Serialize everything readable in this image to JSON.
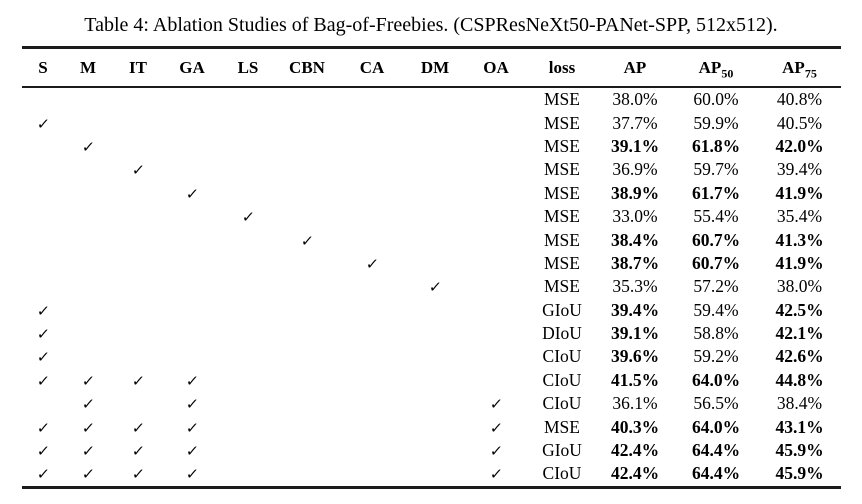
{
  "title": "Table 4: Ablation Studies of Bag-of-Freebies. (CSPResNeXt50-PANet-SPP, 512x512).",
  "table": {
    "check_glyph": "✓",
    "header": {
      "toggles": [
        "S",
        "M",
        "IT",
        "GA",
        "LS",
        "CBN",
        "CA",
        "DM",
        "OA"
      ],
      "loss": "loss",
      "metrics": [
        {
          "base": "AP",
          "sub": ""
        },
        {
          "base": "AP",
          "sub": "50"
        },
        {
          "base": "AP",
          "sub": "75"
        }
      ]
    },
    "rows": [
      {
        "checks": [],
        "loss": "MSE",
        "metrics": [
          {
            "v": "38.0%",
            "bold": false
          },
          {
            "v": "60.0%",
            "bold": false
          },
          {
            "v": "40.8%",
            "bold": false
          }
        ]
      },
      {
        "checks": [
          "S"
        ],
        "loss": "MSE",
        "metrics": [
          {
            "v": "37.7%",
            "bold": false
          },
          {
            "v": "59.9%",
            "bold": false
          },
          {
            "v": "40.5%",
            "bold": false
          }
        ]
      },
      {
        "checks": [
          "M"
        ],
        "loss": "MSE",
        "metrics": [
          {
            "v": "39.1%",
            "bold": true
          },
          {
            "v": "61.8%",
            "bold": true
          },
          {
            "v": "42.0%",
            "bold": true
          }
        ]
      },
      {
        "checks": [
          "IT"
        ],
        "loss": "MSE",
        "metrics": [
          {
            "v": "36.9%",
            "bold": false
          },
          {
            "v": "59.7%",
            "bold": false
          },
          {
            "v": "39.4%",
            "bold": false
          }
        ]
      },
      {
        "checks": [
          "GA"
        ],
        "loss": "MSE",
        "metrics": [
          {
            "v": "38.9%",
            "bold": true
          },
          {
            "v": "61.7%",
            "bold": true
          },
          {
            "v": "41.9%",
            "bold": true
          }
        ]
      },
      {
        "checks": [
          "LS"
        ],
        "loss": "MSE",
        "metrics": [
          {
            "v": "33.0%",
            "bold": false
          },
          {
            "v": "55.4%",
            "bold": false
          },
          {
            "v": "35.4%",
            "bold": false
          }
        ]
      },
      {
        "checks": [
          "CBN"
        ],
        "loss": "MSE",
        "metrics": [
          {
            "v": "38.4%",
            "bold": true
          },
          {
            "v": "60.7%",
            "bold": true
          },
          {
            "v": "41.3%",
            "bold": true
          }
        ]
      },
      {
        "checks": [
          "CA"
        ],
        "loss": "MSE",
        "metrics": [
          {
            "v": "38.7%",
            "bold": true
          },
          {
            "v": "60.7%",
            "bold": true
          },
          {
            "v": "41.9%",
            "bold": true
          }
        ]
      },
      {
        "checks": [
          "DM"
        ],
        "loss": "MSE",
        "metrics": [
          {
            "v": "35.3%",
            "bold": false
          },
          {
            "v": "57.2%",
            "bold": false
          },
          {
            "v": "38.0%",
            "bold": false
          }
        ]
      },
      {
        "checks": [
          "S"
        ],
        "loss": "GIoU",
        "metrics": [
          {
            "v": "39.4%",
            "bold": true
          },
          {
            "v": "59.4%",
            "bold": false
          },
          {
            "v": "42.5%",
            "bold": true
          }
        ]
      },
      {
        "checks": [
          "S"
        ],
        "loss": "DIoU",
        "metrics": [
          {
            "v": "39.1%",
            "bold": true
          },
          {
            "v": "58.8%",
            "bold": false
          },
          {
            "v": "42.1%",
            "bold": true
          }
        ]
      },
      {
        "checks": [
          "S"
        ],
        "loss": "CIoU",
        "metrics": [
          {
            "v": "39.6%",
            "bold": true
          },
          {
            "v": "59.2%",
            "bold": false
          },
          {
            "v": "42.6%",
            "bold": true
          }
        ]
      },
      {
        "checks": [
          "S",
          "M",
          "IT",
          "GA"
        ],
        "loss": "CIoU",
        "metrics": [
          {
            "v": "41.5%",
            "bold": true
          },
          {
            "v": "64.0%",
            "bold": true
          },
          {
            "v": "44.8%",
            "bold": true
          }
        ]
      },
      {
        "checks": [
          "M",
          "GA",
          "OA"
        ],
        "loss": "CIoU",
        "metrics": [
          {
            "v": "36.1%",
            "bold": false
          },
          {
            "v": "56.5%",
            "bold": false
          },
          {
            "v": "38.4%",
            "bold": false
          }
        ]
      },
      {
        "checks": [
          "S",
          "M",
          "IT",
          "GA",
          "OA"
        ],
        "loss": "MSE",
        "metrics": [
          {
            "v": "40.3%",
            "bold": true
          },
          {
            "v": "64.0%",
            "bold": true
          },
          {
            "v": "43.1%",
            "bold": true
          }
        ]
      },
      {
        "checks": [
          "S",
          "M",
          "IT",
          "GA",
          "OA"
        ],
        "loss": "GIoU",
        "metrics": [
          {
            "v": "42.4%",
            "bold": true
          },
          {
            "v": "64.4%",
            "bold": true
          },
          {
            "v": "45.9%",
            "bold": true
          }
        ]
      },
      {
        "checks": [
          "S",
          "M",
          "IT",
          "GA",
          "OA"
        ],
        "loss": "CIoU",
        "metrics": [
          {
            "v": "42.4%",
            "bold": true
          },
          {
            "v": "64.4%",
            "bold": true
          },
          {
            "v": "45.9%",
            "bold": true
          }
        ]
      }
    ]
  }
}
